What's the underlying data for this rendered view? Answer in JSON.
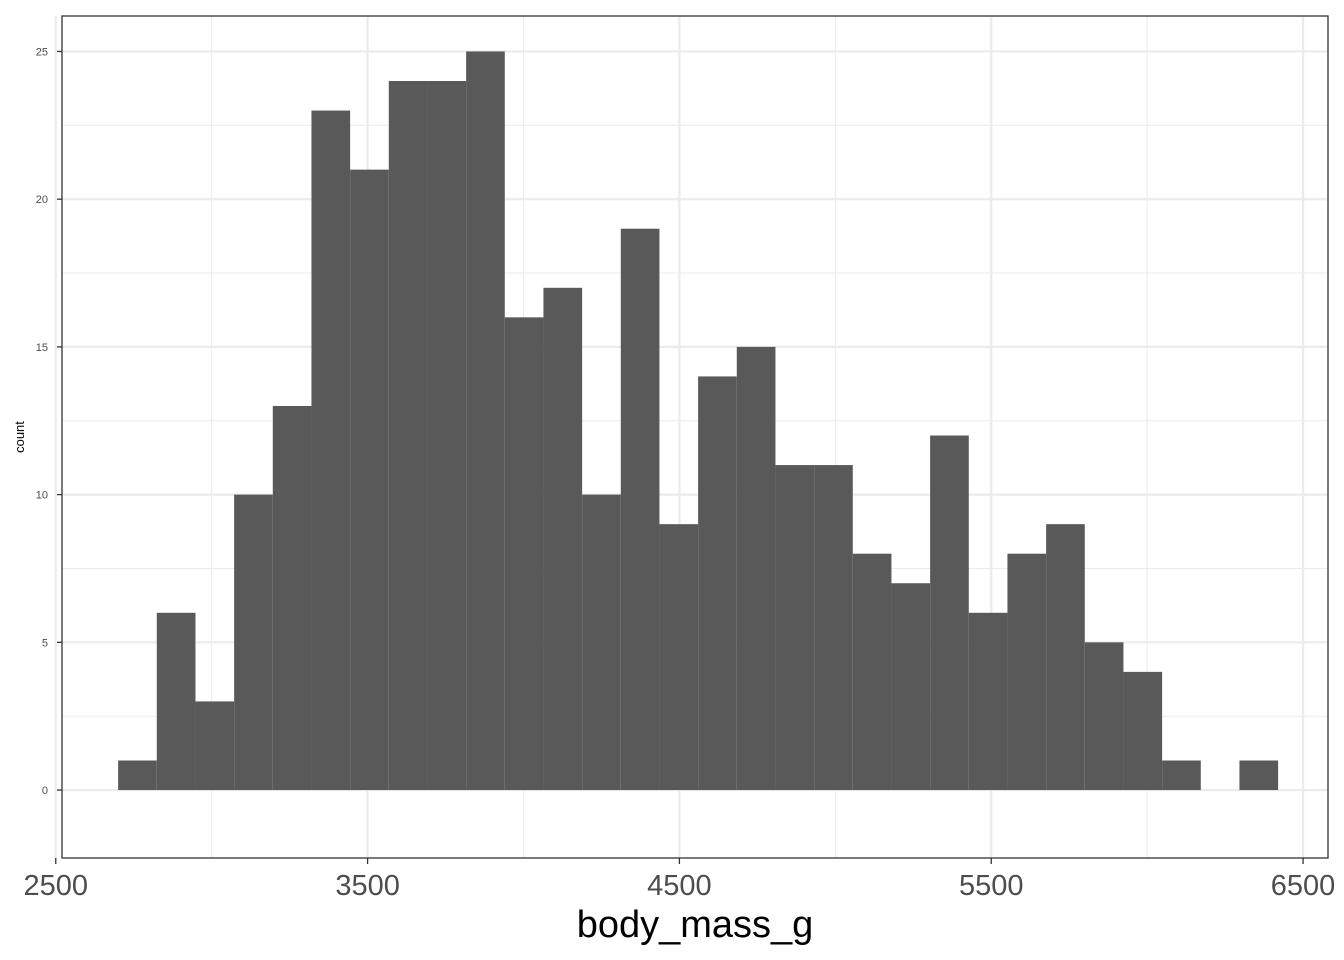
{
  "chart_data": {
    "type": "bar",
    "subtype": "histogram",
    "title": "",
    "xlabel": "body_mass_g",
    "ylabel": "count",
    "xlim": [
      2520,
      6580
    ],
    "ylim": [
      -2.3,
      26.2
    ],
    "x_ticks": [
      2500,
      3500,
      4500,
      5500,
      6500
    ],
    "x_tick_labels": [
      "2500",
      "3500",
      "4500",
      "5500",
      "6500"
    ],
    "y_ticks": [
      0,
      5,
      10,
      15,
      20,
      25
    ],
    "y_tick_labels": [
      "0",
      "5",
      "10",
      "15",
      "20",
      "25"
    ],
    "grid": true,
    "bar_color": "#595959",
    "bins": [
      {
        "x0": 2700,
        "x1": 2824,
        "count": 1
      },
      {
        "x0": 2824,
        "x1": 2948,
        "count": 6
      },
      {
        "x0": 2948,
        "x1": 3072,
        "count": 3
      },
      {
        "x0": 3072,
        "x1": 3196,
        "count": 10
      },
      {
        "x0": 3196,
        "x1": 3320,
        "count": 13
      },
      {
        "x0": 3320,
        "x1": 3444,
        "count": 23
      },
      {
        "x0": 3444,
        "x1": 3568,
        "count": 21
      },
      {
        "x0": 3568,
        "x1": 3692,
        "count": 24
      },
      {
        "x0": 3692,
        "x1": 3816,
        "count": 24
      },
      {
        "x0": 3816,
        "x1": 3940,
        "count": 25
      },
      {
        "x0": 3940,
        "x1": 4064,
        "count": 16
      },
      {
        "x0": 4064,
        "x1": 4188,
        "count": 17
      },
      {
        "x0": 4188,
        "x1": 4312,
        "count": 10
      },
      {
        "x0": 4312,
        "x1": 4436,
        "count": 19
      },
      {
        "x0": 4436,
        "x1": 4560,
        "count": 9
      },
      {
        "x0": 4560,
        "x1": 4684,
        "count": 14
      },
      {
        "x0": 4684,
        "x1": 4808,
        "count": 15
      },
      {
        "x0": 4808,
        "x1": 4932,
        "count": 11
      },
      {
        "x0": 4932,
        "x1": 5056,
        "count": 11
      },
      {
        "x0": 5056,
        "x1": 5180,
        "count": 8
      },
      {
        "x0": 5180,
        "x1": 5304,
        "count": 7
      },
      {
        "x0": 5304,
        "x1": 5428,
        "count": 12
      },
      {
        "x0": 5428,
        "x1": 5552,
        "count": 6
      },
      {
        "x0": 5552,
        "x1": 5676,
        "count": 8
      },
      {
        "x0": 5676,
        "x1": 5800,
        "count": 9
      },
      {
        "x0": 5800,
        "x1": 5924,
        "count": 5
      },
      {
        "x0": 5924,
        "x1": 6048,
        "count": 4
      },
      {
        "x0": 6048,
        "x1": 6172,
        "count": 1
      },
      {
        "x0": 6172,
        "x1": 6296,
        "count": 0
      },
      {
        "x0": 6296,
        "x1": 6420,
        "count": 1
      }
    ]
  }
}
